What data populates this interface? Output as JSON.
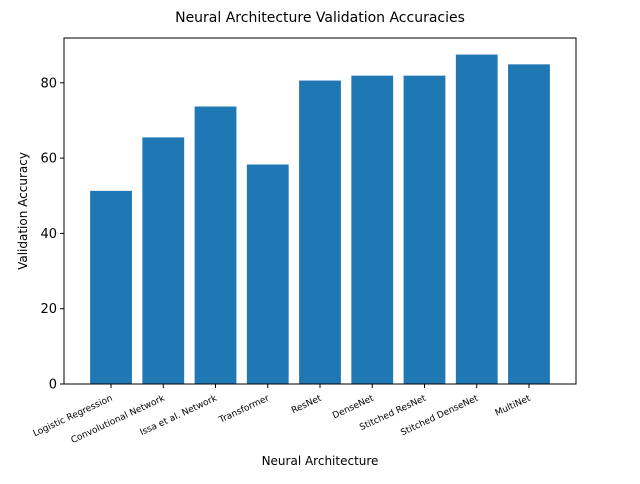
{
  "chart_data": {
    "type": "bar",
    "title": "Neural Architecture Validation Accuracies",
    "xlabel": "Neural Architecture",
    "ylabel": "Validation Accuracy",
    "categories": [
      "Logistic Regression",
      "Convolutional Network",
      "Issa et al. Network",
      "Transformer",
      "ResNet",
      "DenseNet",
      "Stitched ResNet",
      "Stitched DenseNet",
      "MultiNet"
    ],
    "values": [
      51.3,
      65.5,
      73.7,
      58.3,
      80.6,
      81.9,
      81.9,
      87.5,
      84.9
    ],
    "ylim": [
      0,
      91.9
    ],
    "yticks": [
      0,
      20,
      40,
      60,
      80
    ],
    "bar_color": "#1f77b4",
    "grid": false,
    "legend": "none"
  }
}
